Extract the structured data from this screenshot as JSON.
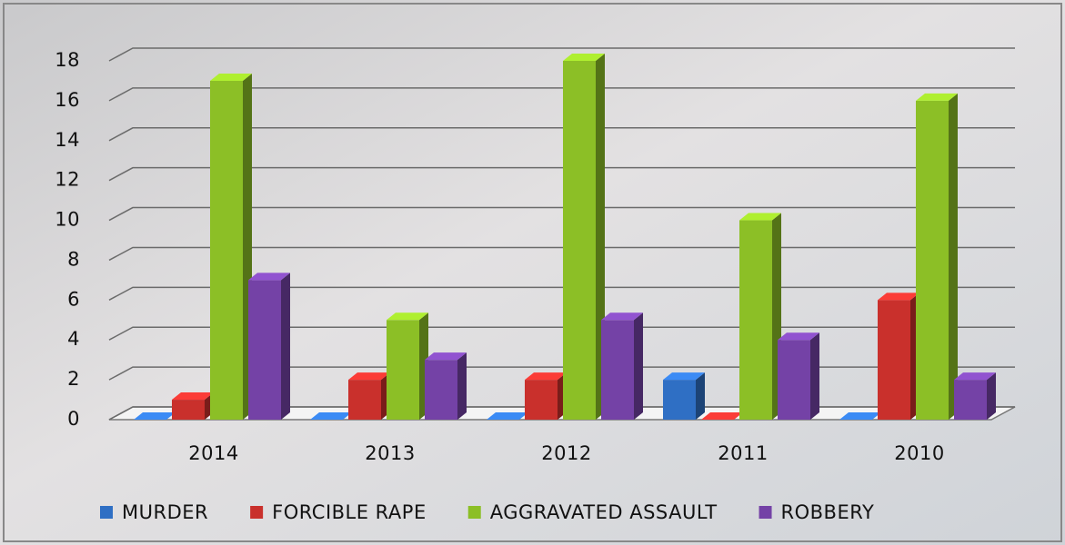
{
  "chart_data": {
    "type": "bar3d",
    "categories": [
      "2014",
      "2013",
      "2012",
      "2011",
      "2010"
    ],
    "series": [
      {
        "name": "MURDER",
        "color": "#2f6fc4",
        "values": [
          0,
          0,
          0,
          2,
          0
        ]
      },
      {
        "name": "FORCIBLE RAPE",
        "color": "#c9302c",
        "values": [
          1,
          2,
          2,
          0,
          6
        ]
      },
      {
        "name": "AGGRAVATED ASSAULT",
        "color": "#8cbf26",
        "values": [
          17,
          5,
          18,
          10,
          16
        ]
      },
      {
        "name": "ROBBERY",
        "color": "#7442a6",
        "values": [
          7,
          3,
          5,
          4,
          2
        ]
      }
    ],
    "ylim": [
      0,
      18
    ],
    "yticks": [
      0,
      2,
      4,
      6,
      8,
      10,
      12,
      14,
      16,
      18
    ],
    "grid": true,
    "legend": "bottom"
  }
}
